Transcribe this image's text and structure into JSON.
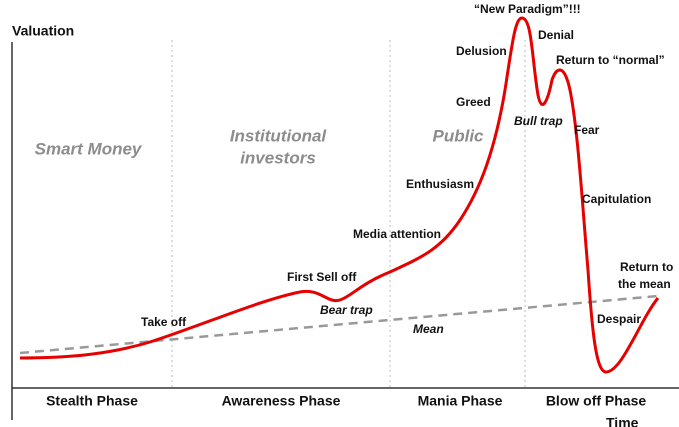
{
  "axes": {
    "y_label": "Valuation",
    "x_label": "Time"
  },
  "zones": [
    {
      "lines": [
        "Smart Money"
      ]
    },
    {
      "lines": [
        "Institutional",
        "investors"
      ]
    },
    {
      "lines": [
        "Public"
      ]
    }
  ],
  "phases": [
    "Stealth Phase",
    "Awareness Phase",
    "Mania Phase",
    "Blow off Phase"
  ],
  "annotations": {
    "take_off": "Take off",
    "first_sell_off": "First Sell off",
    "bear_trap": "Bear trap",
    "media_attention": "Media attention",
    "enthusiasm": "Enthusiasm",
    "greed": "Greed",
    "delusion": "Delusion",
    "new_paradigm": "“New Paradigm”!!!",
    "denial": "Denial",
    "bull_trap": "Bull trap",
    "return_to_normal": "Return to “normal”",
    "fear": "Fear",
    "capitulation": "Capitulation",
    "return_to_mean": [
      "Return to",
      "the mean"
    ],
    "despair": "Despair",
    "mean": "Mean"
  }
}
